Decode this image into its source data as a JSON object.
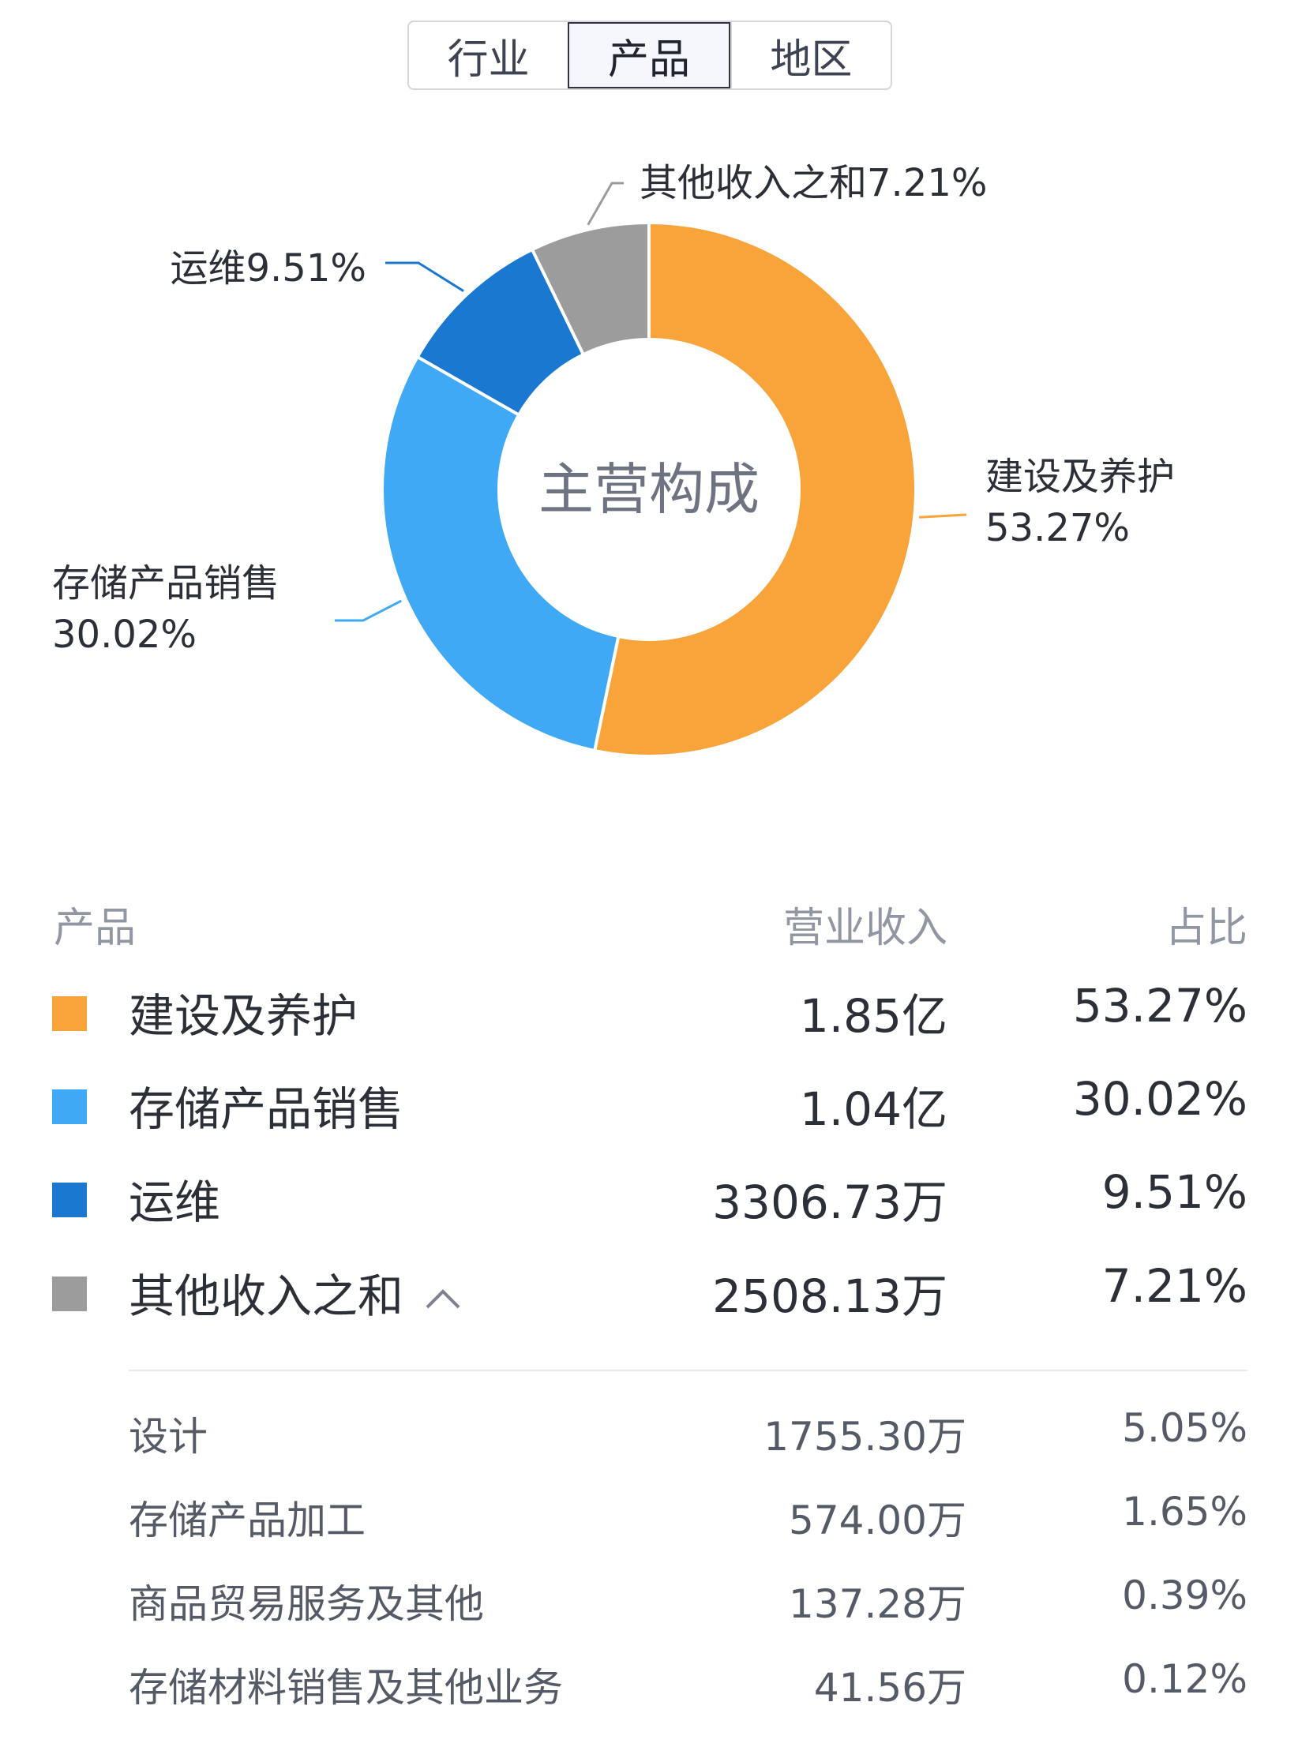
{
  "tabs": [
    "行业",
    "产品",
    "地区"
  ],
  "active_tab": "产品",
  "chart_center_label": "主营构成",
  "chart_data": {
    "type": "pie",
    "donut": true,
    "title": "",
    "slices": [
      {
        "name": "建设及养护",
        "value": 53.27,
        "label": [
          "建设及养护",
          "53.27%"
        ],
        "color": "#f9a43a"
      },
      {
        "name": "存储产品销售",
        "value": 30.02,
        "label": [
          "存储产品销售",
          "30.02%"
        ],
        "color": "#3fa9f5"
      },
      {
        "name": "运维",
        "value": 9.51,
        "label": [
          "运维9.51%"
        ],
        "color": "#1a78d0"
      },
      {
        "name": "其他收入之和",
        "value": 7.21,
        "label": [
          "其他收入之和7.21%"
        ],
        "color": "#9b9c9b"
      }
    ]
  },
  "table": {
    "headers": {
      "name": "产品",
      "revenue": "营业收入",
      "share": "占比"
    },
    "rows": [
      {
        "name": "建设及养护",
        "revenue": "1.85亿",
        "share": "53.27%",
        "color": "#f9a43a"
      },
      {
        "name": "存储产品销售",
        "revenue": "1.04亿",
        "share": "30.02%",
        "color": "#3fa9f5"
      },
      {
        "name": "运维",
        "revenue": "3306.73万",
        "share": "9.51%",
        "color": "#1a78d0"
      },
      {
        "name": "其他收入之和",
        "revenue": "2508.13万",
        "share": "7.21%",
        "color": "#9b9c9b",
        "expand_icon": "chevron-up-icon"
      }
    ],
    "sub_rows": [
      {
        "name": "设计",
        "revenue": "1755.30万",
        "share": "5.05%"
      },
      {
        "name": "存储产品加工",
        "revenue": "574.00万",
        "share": "1.65%"
      },
      {
        "name": "商品贸易服务及其他",
        "revenue": "137.28万",
        "share": "0.39%"
      },
      {
        "name": "存储材料销售及其他业务",
        "revenue": "41.56万",
        "share": "0.12%"
      }
    ]
  }
}
